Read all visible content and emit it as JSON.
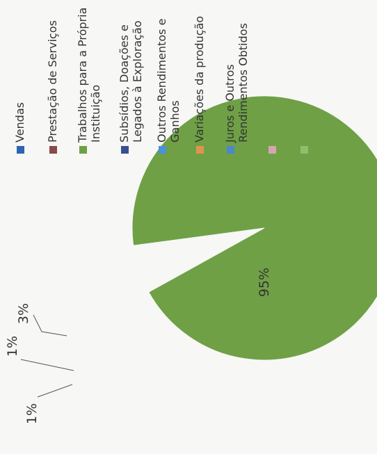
{
  "chart_data": {
    "type": "pie",
    "title": "",
    "slices": [
      {
        "label": "Vendas",
        "value": 0,
        "color": "#2e64b0",
        "data_label": ""
      },
      {
        "label": "Prestação de Serviços",
        "value": 0.6,
        "color": "#8a4a4a",
        "data_label": ""
      },
      {
        "label": "Trabalhos para a Própria Instituição",
        "value": 95,
        "color": "#6fa046",
        "data_label": "95%"
      },
      {
        "label": "Subsídios, Doações e Legados à Exploração",
        "value": 0.2,
        "color": "#3a4f8f",
        "data_label": ""
      },
      {
        "label": "Outros Rendimentos e Ganhos",
        "value": 1,
        "color": "#4a93d6",
        "data_label": "1%"
      },
      {
        "label": "Variações da produção",
        "value": 1,
        "color": "#e0934f",
        "data_label": "1%"
      },
      {
        "label": "Juros e Outros Rendimentos Obtidos",
        "value": 0.2,
        "color": "#4f86c8",
        "data_label": ""
      },
      {
        "label": "",
        "value": 3,
        "color": "#d6a6ae",
        "data_label": "3%"
      },
      {
        "label": "",
        "value": 0,
        "color": "#8fbf6e",
        "data_label": ""
      }
    ],
    "legend_position": "right"
  }
}
